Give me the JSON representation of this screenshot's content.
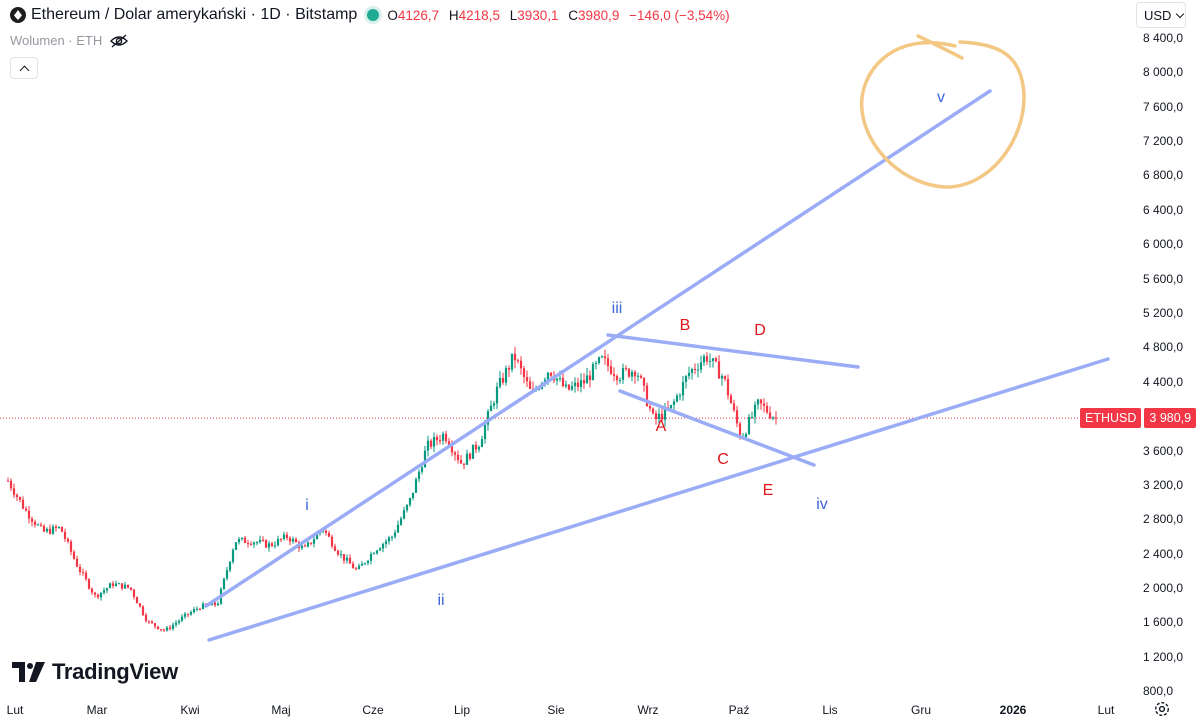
{
  "legend": {
    "title": "Ethereum / Dolar amerykański · 1D · Bitstamp",
    "open_key": "O",
    "open": "4126,7",
    "high_key": "H",
    "high": "4218,5",
    "low_key": "L",
    "low": "3930,1",
    "close_key": "C",
    "close": "3980,9",
    "change": "−146,0 (−3,54%)",
    "volume_label": "Wolumen · ETH"
  },
  "toolbar": {
    "currency": "USD"
  },
  "price_tag": {
    "symbol": "ETHUSD",
    "value": "3 980,9"
  },
  "brand": {
    "name": "TradingView"
  },
  "colors": {
    "up": "#089981",
    "down": "#f23645",
    "trendline": "#9aacf6",
    "wave_blue": "#3b65d9",
    "wave_red": "#e0161b",
    "circle": "#f3c784"
  },
  "chart_data": {
    "type": "candlestick",
    "y_ticks": [
      "8 400,0",
      "8 000,0",
      "7 600,0",
      "7 200,0",
      "6 800,0",
      "6 400,0",
      "6 000,0",
      "5 600,0",
      "5 200,0",
      "4 800,0",
      "4 400,0",
      "3 600,0",
      "3 200,0",
      "2 800,0",
      "2 400,0",
      "2 000,0",
      "1 600,0",
      "1 200,0",
      "800,0"
    ],
    "y_tick_values": [
      8400,
      8000,
      7600,
      7200,
      6800,
      6400,
      6000,
      5600,
      5200,
      4800,
      4400,
      3600,
      3200,
      2800,
      2400,
      2000,
      1600,
      1200,
      800
    ],
    "ylim": [
      800,
      8400
    ],
    "x_ticks": [
      "Lut",
      "Mar",
      "Kwi",
      "Maj",
      "Cze",
      "Lip",
      "Sie",
      "Wrz",
      "Paź",
      "Lis",
      "Gru",
      "2026",
      "Lut"
    ],
    "last_price": 3980.9,
    "waypoints": [
      {
        "x": "Lut",
        "y": 3250
      },
      {
        "x": "Lut",
        "y": 2900
      },
      {
        "x": "Lut",
        "y": 2650
      },
      {
        "x": "Lut",
        "y": 2700
      },
      {
        "x": "Mar",
        "y": 2250
      },
      {
        "x": "Mar",
        "y": 1900
      },
      {
        "x": "Mar",
        "y": 2050
      },
      {
        "x": "Mar",
        "y": 2000
      },
      {
        "x": "Kwi",
        "y": 1600
      },
      {
        "x": "Kwi",
        "y": 1500
      },
      {
        "x": "Kwi",
        "y": 1650
      },
      {
        "x": "Kwi",
        "y": 1780
      },
      {
        "x": "Maj",
        "y": 1810
      },
      {
        "x": "Maj",
        "y": 2550
      },
      {
        "x": "Maj",
        "y": 2550
      },
      {
        "x": "Maj",
        "y": 2500
      },
      {
        "x": "Cze",
        "y": 2600
      },
      {
        "x": "Cze",
        "y": 2450
      },
      {
        "x": "Cze",
        "y": 2700
      },
      {
        "x": "Cze",
        "y": 2400
      },
      {
        "x": "Lip",
        "y": 2200
      },
      {
        "x": "Lip",
        "y": 2450
      },
      {
        "x": "Lip",
        "y": 2600
      },
      {
        "x": "Lip",
        "y": 3000
      },
      {
        "x": "Lip",
        "y": 3650
      },
      {
        "x": "Lip",
        "y": 3800
      },
      {
        "x": "Sie",
        "y": 3450
      },
      {
        "x": "Sie",
        "y": 3700
      },
      {
        "x": "Sie",
        "y": 4300
      },
      {
        "x": "Sie",
        "y": 4700
      },
      {
        "x": "Sie",
        "y": 4250
      },
      {
        "x": "Sie",
        "y": 4550
      },
      {
        "x": "Wrz",
        "y": 4300
      },
      {
        "x": "Wrz",
        "y": 4400
      },
      {
        "x": "Wrz",
        "y": 4650
      },
      {
        "x": "Wrz",
        "y": 4480
      },
      {
        "x": "Wrz",
        "y": 4550
      },
      {
        "x": "Wrz",
        "y": 3950
      },
      {
        "x": "Paź",
        "y": 4100
      },
      {
        "x": "Paź",
        "y": 4500
      },
      {
        "x": "Paź",
        "y": 4700
      },
      {
        "x": "Paź",
        "y": 4450
      },
      {
        "x": "Paź",
        "y": 3750
      },
      {
        "x": "Paź",
        "y": 4150
      },
      {
        "x": "Paź",
        "y": 3981
      }
    ]
  },
  "annotations": {
    "wave_labels": [
      {
        "text": "i",
        "color": "blue"
      },
      {
        "text": "ii",
        "color": "blue"
      },
      {
        "text": "iii",
        "color": "blue"
      },
      {
        "text": "iv",
        "color": "blue"
      },
      {
        "text": "v",
        "color": "blue"
      },
      {
        "text": "A",
        "color": "red"
      },
      {
        "text": "B",
        "color": "red"
      },
      {
        "text": "C",
        "color": "red"
      },
      {
        "text": "D",
        "color": "red"
      },
      {
        "text": "E",
        "color": "red"
      }
    ]
  }
}
